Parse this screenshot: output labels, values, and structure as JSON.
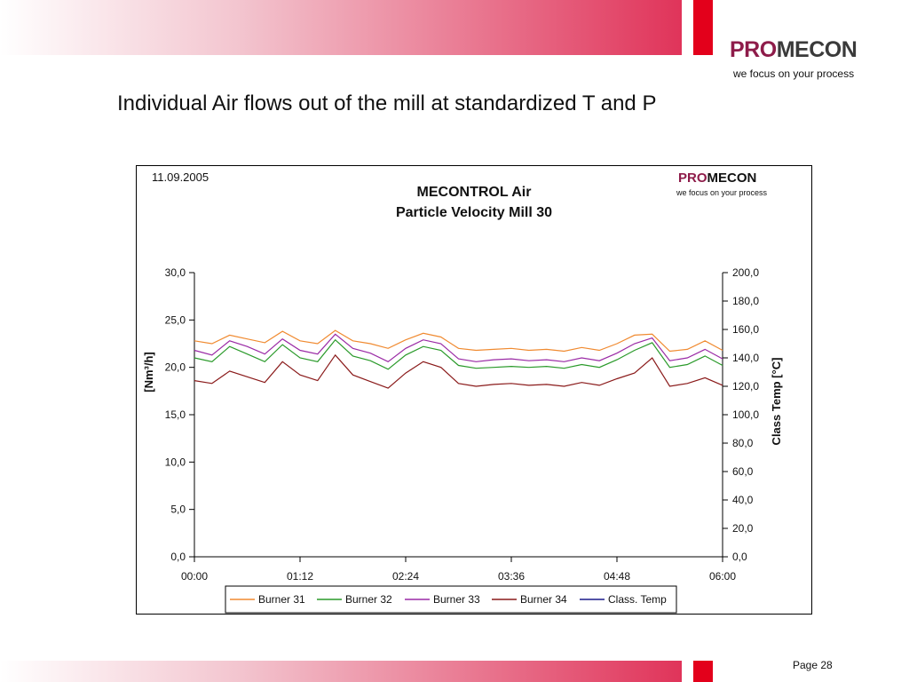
{
  "slide": {
    "title": "Individual Air flows out of the mill at standardized T and P",
    "page": "Page 28",
    "logo_pro": "PRO",
    "logo_mecon": "MECON",
    "tagline": "we focus on your process"
  },
  "chart_data": {
    "type": "line",
    "date": "11.09.2005",
    "title": "MECONTROL Air",
    "subtitle": "Particle Velocity Mill 30",
    "logo_pro": "PRO",
    "logo_mecon": "MECON",
    "logo_tagline": "we focus on your process",
    "ylabel": "[Nm³/h]",
    "y2label": "Class Temp [°C]",
    "ylim": [
      0,
      30
    ],
    "y2lim": [
      0,
      200
    ],
    "xlim_minutes": [
      0,
      360
    ],
    "x_ticks": [
      "00:00",
      "01:12",
      "02:24",
      "03:36",
      "04:48",
      "06:00"
    ],
    "y_ticks": [
      "0,0",
      "5,0",
      "10,0",
      "15,0",
      "20,0",
      "25,0",
      "30,0"
    ],
    "y2_ticks": [
      "0,0",
      "20,0",
      "40,0",
      "60,0",
      "80,0",
      "100,0",
      "120,0",
      "140,0",
      "160,0",
      "180,0",
      "200,0"
    ],
    "legend_position": "bottom",
    "grid": false,
    "x_minutes": [
      0,
      12,
      24,
      36,
      48,
      60,
      72,
      84,
      96,
      108,
      120,
      132,
      144,
      156,
      168,
      180,
      192,
      204,
      216,
      228,
      240,
      252,
      264,
      276,
      288,
      300,
      312,
      324,
      336,
      348,
      360
    ],
    "series": [
      {
        "name": "Burner 31",
        "color": "#f08a30",
        "values": [
          22.8,
          22.5,
          23.4,
          23.0,
          22.6,
          23.8,
          22.8,
          22.5,
          23.9,
          22.8,
          22.5,
          22.0,
          22.9,
          23.6,
          23.2,
          22.0,
          21.8,
          21.9,
          22.0,
          21.8,
          21.9,
          21.7,
          22.1,
          21.8,
          22.5,
          23.4,
          23.5,
          21.7,
          21.9,
          22.8,
          21.8
        ]
      },
      {
        "name": "Burner 32",
        "color": "#2a9a2a",
        "values": [
          21.0,
          20.6,
          22.2,
          21.4,
          20.6,
          22.4,
          21.0,
          20.6,
          22.9,
          21.2,
          20.7,
          19.8,
          21.3,
          22.2,
          21.8,
          20.2,
          19.9,
          20.0,
          20.1,
          20.0,
          20.1,
          19.9,
          20.3,
          20.0,
          20.8,
          21.8,
          22.6,
          20.0,
          20.3,
          21.2,
          20.2
        ]
      },
      {
        "name": "Burner 33",
        "color": "#9a2aa5",
        "values": [
          21.8,
          21.3,
          22.8,
          22.2,
          21.4,
          23.0,
          21.8,
          21.4,
          23.5,
          22.0,
          21.5,
          20.6,
          22.0,
          22.9,
          22.5,
          20.9,
          20.6,
          20.8,
          20.9,
          20.7,
          20.8,
          20.6,
          21.0,
          20.7,
          21.5,
          22.5,
          23.1,
          20.7,
          21.0,
          21.9,
          20.9
        ]
      },
      {
        "name": "Burner 34",
        "color": "#8a1a1a",
        "values": [
          18.6,
          18.3,
          19.6,
          19.0,
          18.4,
          20.6,
          19.2,
          18.6,
          21.3,
          19.2,
          18.5,
          17.8,
          19.4,
          20.6,
          20.0,
          18.3,
          18.0,
          18.2,
          18.3,
          18.1,
          18.2,
          18.0,
          18.4,
          18.1,
          18.8,
          19.4,
          21.0,
          18.0,
          18.3,
          18.9,
          18.1
        ]
      },
      {
        "name": "Class. Temp",
        "color": "#1a1a8a",
        "axis": "right",
        "values": []
      }
    ]
  }
}
